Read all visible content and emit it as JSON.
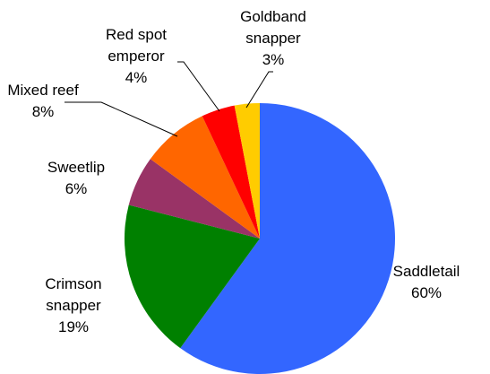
{
  "chart_data": {
    "type": "pie",
    "title": "",
    "legend": "none",
    "slices": [
      {
        "name": "Saddletail",
        "label_lines": [
          "Saddletail"
        ],
        "value": 60,
        "pct_label": "60%",
        "color": "#3366ff"
      },
      {
        "name": "Crimson snapper",
        "label_lines": [
          "Crimson",
          "snapper"
        ],
        "value": 19,
        "pct_label": "19%",
        "color": "#008000"
      },
      {
        "name": "Sweetlip",
        "label_lines": [
          "Sweetlip"
        ],
        "value": 6,
        "pct_label": "6%",
        "color": "#993366"
      },
      {
        "name": "Mixed reef",
        "label_lines": [
          "Mixed reef"
        ],
        "value": 8,
        "pct_label": "8%",
        "color": "#ff6600"
      },
      {
        "name": "Red spot emperor",
        "label_lines": [
          "Red spot",
          "emperor"
        ],
        "value": 4,
        "pct_label": "4%",
        "color": "#ff0000"
      },
      {
        "name": "Goldband snapper",
        "label_lines": [
          "Goldband",
          "snapper"
        ],
        "value": 3,
        "pct_label": "3%",
        "color": "#ffcc00"
      }
    ]
  }
}
